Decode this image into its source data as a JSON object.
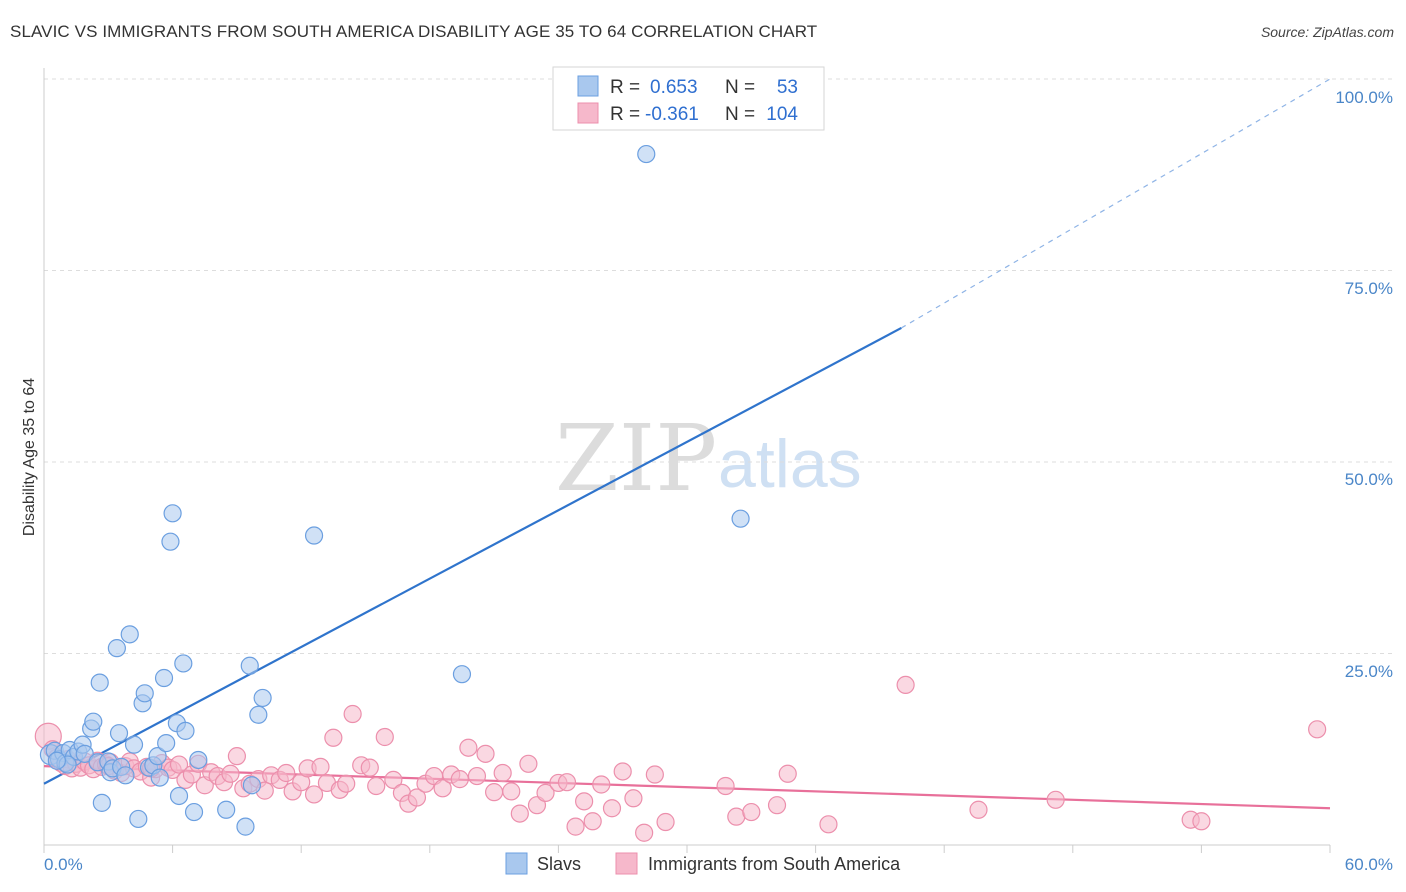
{
  "header": {
    "title": "SLAVIC VS IMMIGRANTS FROM SOUTH AMERICA DISABILITY AGE 35 TO 64 CORRELATION CHART",
    "source": "Source: ZipAtlas.com"
  },
  "watermark": {
    "zip": "ZIP",
    "atlas": "atlas"
  },
  "legend": {
    "rows": [
      {
        "r_label": "R =",
        "r_value": "0.653",
        "n_label": "N =",
        "n_value": "53",
        "color": "#a9c8ee",
        "stroke": "#6b9fe0"
      },
      {
        "r_label": "R =",
        "r_value": "-0.361",
        "n_label": "N =",
        "n_value": "104",
        "color": "#f6b8cb",
        "stroke": "#ec8fac"
      }
    ]
  },
  "bottom_legend": {
    "series_a": "Slavs",
    "series_b": "Immigrants from South America"
  },
  "colors": {
    "blue": "#2f74cc",
    "blue_fill": "#a9c8ee",
    "pink": "#e8709a",
    "pink_fill": "#f6b8cb",
    "grid": "#dddddd",
    "tick": "#4a86c8"
  },
  "chart_data": {
    "type": "scatter",
    "title": "SLAVIC VS IMMIGRANTS FROM SOUTH AMERICA DISABILITY AGE 35 TO 64 CORRELATION CHART",
    "xlabel": "",
    "ylabel": "Disability Age 35 to 64",
    "xlim": [
      0,
      60
    ],
    "ylim": [
      0,
      100
    ],
    "x_tick_labels": [
      "0.0%",
      "60.0%"
    ],
    "y_ticks": [
      25,
      50,
      75,
      100
    ],
    "y_tick_labels": [
      "25.0%",
      "50.0%",
      "75.0%",
      "100.0%"
    ],
    "series": [
      {
        "name": "Slavs",
        "r": 0.653,
        "n": 53,
        "trend": {
          "x0": 0,
          "y0": 8.0,
          "x1": 40,
          "y1": 67.5,
          "dashed_to_x": 60,
          "dashed_to_y": 100
        },
        "points": [
          [
            0.3,
            11.8
          ],
          [
            0.5,
            12.3
          ],
          [
            0.7,
            11.2
          ],
          [
            0.9,
            12.0
          ],
          [
            1.0,
            10.7
          ],
          [
            1.2,
            12.4
          ],
          [
            1.4,
            11.5
          ],
          [
            1.6,
            12.2
          ],
          [
            1.8,
            13.1
          ],
          [
            1.9,
            11.9
          ],
          [
            2.2,
            15.2
          ],
          [
            2.3,
            16.1
          ],
          [
            2.5,
            10.8
          ],
          [
            2.6,
            21.2
          ],
          [
            2.7,
            5.5
          ],
          [
            3.0,
            10.9
          ],
          [
            3.1,
            9.5
          ],
          [
            3.2,
            10.0
          ],
          [
            3.4,
            25.7
          ],
          [
            3.5,
            14.6
          ],
          [
            3.6,
            10.2
          ],
          [
            3.8,
            9.1
          ],
          [
            4.0,
            27.5
          ],
          [
            4.2,
            13.1
          ],
          [
            4.4,
            3.4
          ],
          [
            4.6,
            18.5
          ],
          [
            4.7,
            19.8
          ],
          [
            4.9,
            10.1
          ],
          [
            5.1,
            10.4
          ],
          [
            5.3,
            11.6
          ],
          [
            5.4,
            8.8
          ],
          [
            5.6,
            21.8
          ],
          [
            5.7,
            13.3
          ],
          [
            5.9,
            39.6
          ],
          [
            6.0,
            43.3
          ],
          [
            6.2,
            15.9
          ],
          [
            6.3,
            6.4
          ],
          [
            6.5,
            23.7
          ],
          [
            6.6,
            14.9
          ],
          [
            7.0,
            4.3
          ],
          [
            7.2,
            11.1
          ],
          [
            8.5,
            4.6
          ],
          [
            9.4,
            2.4
          ],
          [
            9.6,
            23.4
          ],
          [
            9.7,
            7.8
          ],
          [
            10.0,
            17.0
          ],
          [
            10.2,
            19.2
          ],
          [
            12.6,
            40.4
          ],
          [
            19.5,
            22.3
          ],
          [
            28.1,
            90.2
          ],
          [
            32.5,
            42.6
          ],
          [
            1.1,
            10.5
          ],
          [
            0.6,
            11.0
          ]
        ]
      },
      {
        "name": "Immigrants from South America",
        "r": -0.361,
        "n": 104,
        "trend": {
          "x0": 0,
          "y0": 10.3,
          "x1": 60,
          "y1": 4.8
        },
        "points": [
          [
            0.2,
            14.2
          ],
          [
            0.4,
            12.5
          ],
          [
            0.6,
            11.4
          ],
          [
            0.8,
            10.7
          ],
          [
            1.0,
            10.3
          ],
          [
            1.1,
            11.2
          ],
          [
            1.3,
            10.0
          ],
          [
            1.5,
            10.6
          ],
          [
            1.7,
            10.1
          ],
          [
            1.9,
            10.9
          ],
          [
            2.1,
            10.4
          ],
          [
            2.3,
            9.9
          ],
          [
            2.5,
            11.0
          ],
          [
            2.7,
            10.2
          ],
          [
            2.9,
            10.5
          ],
          [
            3.1,
            10.8
          ],
          [
            3.3,
            9.7
          ],
          [
            3.6,
            9.4
          ],
          [
            3.8,
            10.3
          ],
          [
            4.0,
            10.9
          ],
          [
            4.2,
            10.0
          ],
          [
            4.5,
            9.6
          ],
          [
            4.8,
            10.2
          ],
          [
            5.0,
            8.8
          ],
          [
            5.2,
            9.9
          ],
          [
            5.5,
            10.7
          ],
          [
            5.8,
            10.1
          ],
          [
            6.0,
            9.8
          ],
          [
            6.3,
            10.5
          ],
          [
            6.6,
            8.5
          ],
          [
            6.9,
            9.2
          ],
          [
            7.2,
            10.6
          ],
          [
            7.5,
            7.8
          ],
          [
            7.8,
            9.5
          ],
          [
            8.1,
            9.0
          ],
          [
            8.4,
            8.2
          ],
          [
            8.7,
            9.3
          ],
          [
            9.0,
            11.6
          ],
          [
            9.3,
            7.4
          ],
          [
            9.6,
            8.0
          ],
          [
            10.0,
            8.6
          ],
          [
            10.3,
            7.1
          ],
          [
            10.6,
            9.1
          ],
          [
            11.0,
            8.5
          ],
          [
            11.3,
            9.4
          ],
          [
            11.6,
            7.0
          ],
          [
            12.0,
            8.2
          ],
          [
            12.3,
            10.0
          ],
          [
            12.6,
            6.6
          ],
          [
            12.9,
            10.2
          ],
          [
            13.2,
            8.1
          ],
          [
            13.5,
            14.0
          ],
          [
            13.8,
            7.2
          ],
          [
            14.1,
            8.0
          ],
          [
            14.4,
            17.1
          ],
          [
            14.8,
            10.4
          ],
          [
            15.2,
            10.1
          ],
          [
            15.5,
            7.7
          ],
          [
            15.9,
            14.1
          ],
          [
            16.3,
            8.5
          ],
          [
            16.7,
            6.8
          ],
          [
            17.0,
            5.4
          ],
          [
            17.4,
            6.2
          ],
          [
            17.8,
            8.0
          ],
          [
            18.2,
            9.0
          ],
          [
            18.6,
            7.4
          ],
          [
            19.0,
            9.2
          ],
          [
            19.4,
            8.6
          ],
          [
            19.8,
            12.7
          ],
          [
            20.2,
            9.0
          ],
          [
            20.6,
            11.9
          ],
          [
            21.0,
            6.9
          ],
          [
            21.4,
            9.4
          ],
          [
            21.8,
            7.0
          ],
          [
            22.2,
            4.1
          ],
          [
            22.6,
            10.6
          ],
          [
            23.0,
            5.2
          ],
          [
            23.4,
            6.8
          ],
          [
            24.0,
            8.1
          ],
          [
            24.4,
            8.2
          ],
          [
            24.8,
            2.4
          ],
          [
            25.2,
            5.7
          ],
          [
            25.6,
            3.1
          ],
          [
            26.0,
            7.9
          ],
          [
            26.5,
            4.8
          ],
          [
            27.0,
            9.6
          ],
          [
            27.5,
            6.1
          ],
          [
            28.0,
            1.6
          ],
          [
            28.5,
            9.2
          ],
          [
            29.0,
            3.0
          ],
          [
            31.8,
            7.7
          ],
          [
            32.3,
            3.7
          ],
          [
            33.0,
            4.3
          ],
          [
            34.2,
            5.2
          ],
          [
            34.7,
            9.3
          ],
          [
            36.6,
            2.7
          ],
          [
            40.2,
            20.9
          ],
          [
            43.6,
            4.6
          ],
          [
            47.2,
            5.9
          ],
          [
            53.5,
            3.3
          ],
          [
            54.0,
            3.1
          ],
          [
            59.4,
            15.1
          ],
          [
            5.0,
            10.0
          ],
          [
            3.0,
            10.3
          ]
        ]
      }
    ]
  }
}
